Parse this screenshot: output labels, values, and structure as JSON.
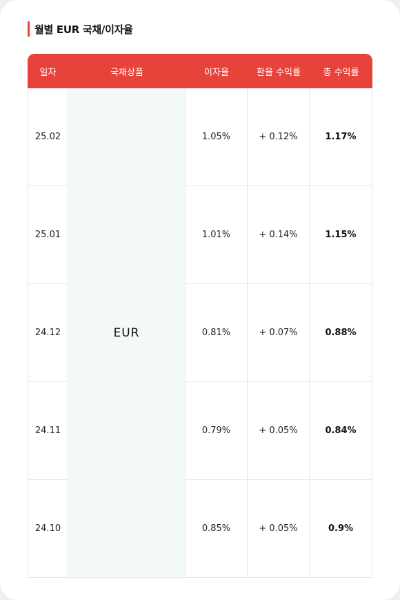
{
  "section": {
    "title": "월별 EUR 국채/이자율"
  },
  "table": {
    "headers": [
      "일자",
      "국채상품",
      "이자율",
      "환율 수익률",
      "총 수익률"
    ],
    "product": "EUR",
    "rows": [
      {
        "date": "25.02",
        "interest": "1.05%",
        "fx": "+ 0.12%",
        "total": "1.17%"
      },
      {
        "date": "25.01",
        "interest": "1.01%",
        "fx": "+ 0.14%",
        "total": "1.15%"
      },
      {
        "date": "24.12",
        "interest": "0.81%",
        "fx": "+ 0.07%",
        "total": "0.88%"
      },
      {
        "date": "24.11",
        "interest": "0.79%",
        "fx": "+ 0.05%",
        "total": "0.84%"
      },
      {
        "date": "24.10",
        "interest": "0.85%",
        "fx": "+ 0.05%",
        "total": "0.9%"
      }
    ]
  },
  "colors": {
    "accent": "#e8433a",
    "product_bg": "#f3f9f6"
  }
}
